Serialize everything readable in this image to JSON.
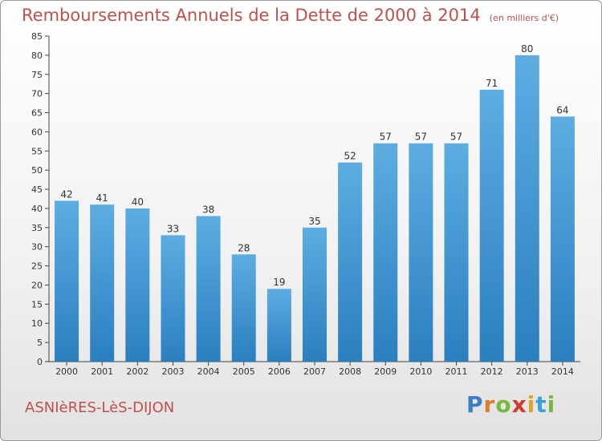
{
  "chart_data": {
    "type": "bar",
    "title": "Remboursements Annuels de la Dette de 2000 à 2014",
    "subtitle": "(en milliers d'€)",
    "categories": [
      "2000",
      "2001",
      "2002",
      "2003",
      "2004",
      "2005",
      "2006",
      "2007",
      "2008",
      "2009",
      "2010",
      "2011",
      "2012",
      "2013",
      "2014"
    ],
    "values": [
      42,
      41,
      40,
      33,
      38,
      28,
      19,
      35,
      52,
      57,
      57,
      57,
      71,
      80,
      64
    ],
    "ylim": [
      0,
      85
    ],
    "yticks": [
      0,
      5,
      10,
      15,
      20,
      25,
      30,
      35,
      40,
      45,
      50,
      55,
      60,
      65,
      70,
      75,
      80,
      85
    ],
    "xlabel": "",
    "ylabel": "",
    "grid": false,
    "data_labels": true,
    "bar_color_top": "#5dade2",
    "bar_color_bottom": "#2a7fbf"
  },
  "commune": "ASNIèRES-LèS-DIJON",
  "logo": {
    "letters": [
      "P",
      "r",
      "o",
      "x",
      "i",
      "t",
      "i"
    ],
    "colors": [
      "#3a7fc1",
      "#e07b2a",
      "#79b83c",
      "#d23a2a",
      "#e0a32a",
      "#3a9fd6",
      "#79b83c"
    ]
  }
}
